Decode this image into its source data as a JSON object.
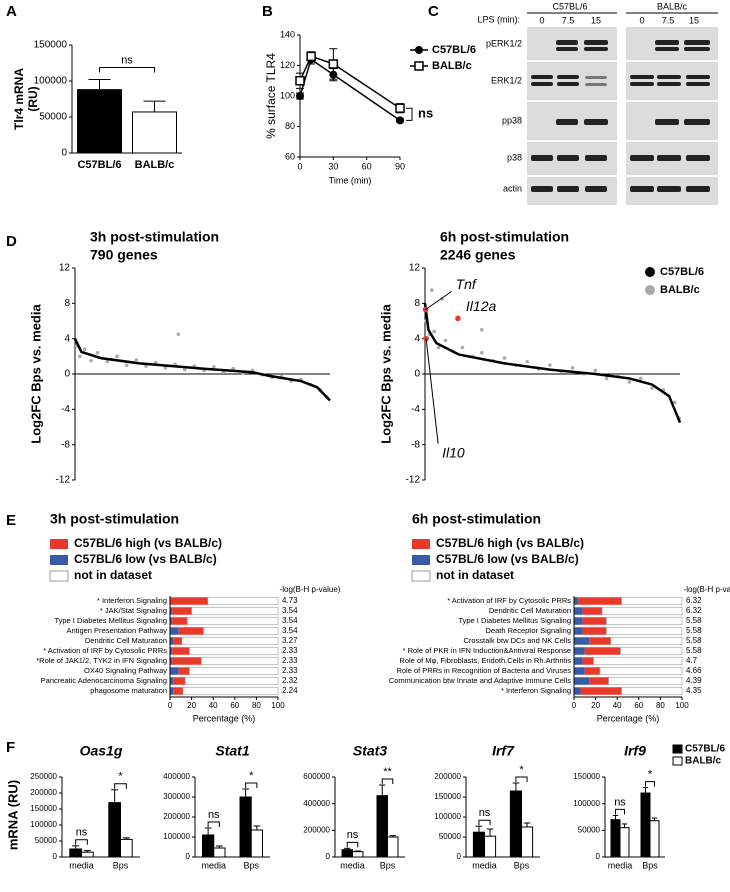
{
  "panel_labels": [
    "A",
    "B",
    "C",
    "D",
    "E",
    "F"
  ],
  "blot": {
    "lps_label": "LPS (min):",
    "strains": [
      "C57BL/6",
      "BALB/c"
    ],
    "times": [
      "0",
      "7.5",
      "15",
      "0",
      "7.5",
      "15"
    ],
    "bands": [
      "pERK1/2",
      "ERK1/2",
      "pp38",
      "p38",
      "actin"
    ]
  },
  "chart_data": [
    {
      "type": "bar",
      "ylabel": [
        "Tlr4 mRNA",
        "(RU)"
      ],
      "categories": [
        "C57BL/6",
        "BALB/c"
      ],
      "values": [
        88000,
        57000
      ],
      "errors": [
        14000,
        15000
      ],
      "colors": [
        "#000000",
        "#ffffff"
      ],
      "ylim": [
        0,
        150000
      ],
      "yticks": [
        0,
        50000,
        100000,
        150000
      ],
      "annotation": "ns"
    },
    {
      "type": "line",
      "ylabel": "% surface TLR4",
      "xlabel": "Time (min)",
      "x": [
        0,
        10,
        30,
        90
      ],
      "xlim": [
        0,
        90
      ],
      "xticks": [
        0,
        30,
        60,
        90
      ],
      "ylim": [
        60,
        140
      ],
      "yticks": [
        60,
        80,
        100,
        120,
        140
      ],
      "annotation": "ns",
      "series": [
        {
          "name": "C57BL/6",
          "color": "#000000",
          "marker": "circle",
          "values": [
            100,
            124,
            114,
            84
          ],
          "errors": [
            2,
            3,
            4,
            1
          ]
        },
        {
          "name": "BALB/c",
          "color": "#000000",
          "marker": "square",
          "values": [
            110,
            126,
            121,
            92
          ],
          "errors": [
            5,
            3,
            10,
            3
          ]
        }
      ]
    },
    {
      "type": "scatter",
      "title": "3h post-stimulation",
      "subtitle": "790 genes",
      "ylabel": "Log2FC Bps vs. media",
      "xlim": [
        0,
        790
      ],
      "ylim": [
        -12,
        12
      ],
      "yticks": [
        12,
        8,
        4,
        0,
        -4,
        -8,
        -12
      ],
      "series": [
        {
          "mode": "points",
          "color": "#aaaaaa",
          "x": [
            5,
            15,
            30,
            50,
            70,
            100,
            130,
            160,
            190,
            220,
            250,
            280,
            310,
            340,
            370,
            400,
            430,
            460,
            490,
            520,
            550,
            580,
            610,
            640,
            670,
            700,
            730,
            760,
            780,
            320
          ],
          "values": [
            3.2,
            2.0,
            2.8,
            1.5,
            2.4,
            1.4,
            2.0,
            1.0,
            1.6,
            0.9,
            1.3,
            0.7,
            1.1,
            0.5,
            0.9,
            0.4,
            0.8,
            0.2,
            0.6,
            0.1,
            0.4,
            -0.1,
            -0.4,
            -0.3,
            -0.8,
            -0.6,
            -1.2,
            -1.8,
            -2.6,
            4.5
          ]
        },
        {
          "mode": "line",
          "color": "#000000",
          "x": [
            0,
            20,
            80,
            200,
            400,
            550,
            600,
            700,
            750,
            790
          ],
          "values": [
            4,
            2.5,
            1.8,
            1.2,
            0.6,
            0.2,
            -0.2,
            -0.8,
            -1.5,
            -3
          ]
        }
      ]
    },
    {
      "type": "scatter",
      "title": "6h post-stimulation",
      "subtitle": "2246 genes",
      "ylabel": "Log2FC Bps vs. media",
      "xlim": [
        0,
        2246
      ],
      "ylim": [
        -12,
        12
      ],
      "yticks": [
        12,
        8,
        4,
        0,
        -4,
        -8,
        -12
      ],
      "legend": "upper right",
      "series": [
        {
          "name": "BALB/c",
          "mode": "points",
          "color": "#aaaaaa",
          "x": [
            10,
            40,
            80,
            120,
            180,
            250,
            330,
            420,
            500,
            600,
            700,
            800,
            900,
            1000,
            1100,
            1200,
            1300,
            1400,
            1500,
            1600,
            1700,
            1800,
            1900,
            2000,
            2100,
            2200,
            2240,
            150,
            60,
            500
          ],
          "values": [
            6,
            4.5,
            4.8,
            3,
            3.8,
            2.5,
            3,
            2,
            2.4,
            1.5,
            1.8,
            1.0,
            1.4,
            0.6,
            1,
            0.3,
            0.7,
            0,
            0.4,
            -0.5,
            -0.2,
            -0.9,
            -0.5,
            -1.6,
            -1.8,
            -3.2,
            -5,
            8.5,
            9.5,
            5
          ]
        },
        {
          "name": "C57BL/6",
          "mode": "line",
          "color": "#000000",
          "x": [
            0,
            30,
            100,
            300,
            700,
            1100,
            1500,
            1800,
            2000,
            2150,
            2246
          ],
          "values": [
            8,
            5,
            3.5,
            2.2,
            1.2,
            0.5,
            0,
            -0.5,
            -1.2,
            -2.5,
            -5.5
          ]
        }
      ],
      "highlight_color": "#e8392b",
      "highlights": [
        {
          "label": "Tnf",
          "x": 5,
          "y": 7.3
        },
        {
          "label": "Il12a",
          "x": 290,
          "y": 6.3
        },
        {
          "label": "Il10",
          "x": 10,
          "y": 4
        }
      ]
    },
    {
      "type": "stacked_hbar",
      "title": "3h post-stimulation",
      "score_label": "-log(B-H p-value)",
      "xlabel": "Percentage (%)",
      "xlim": [
        0,
        100
      ],
      "xticks": [
        0,
        20,
        40,
        60,
        80,
        100
      ],
      "categories": [
        "* Interferon Signaling",
        "* JAK/Stat Signaling",
        "Type I Diabetes Mellitus Signaling",
        "Antigen Presentation Pathway",
        "Dendritic Cell Maturation",
        "* Activation of IRF by Cytosolic PRRs",
        "*Role of JAK1/2, TYK2 in IFN Signaling",
        "OX40 Signaling Pathway",
        "Pancreatic Adenocarcinoma Signaling",
        "phagosome maturation"
      ],
      "scores": [
        4.73,
        3.54,
        3.54,
        3.54,
        3.27,
        2.33,
        2.33,
        2.33,
        2.32,
        2.24
      ],
      "series": [
        {
          "name": "C57BL/6 low (vs BALB/c)",
          "color": "#3a5ba8",
          "values": [
            0,
            2,
            2,
            8,
            3,
            2,
            2,
            8,
            3,
            3
          ]
        },
        {
          "name": "C57BL/6 high (vs BALB/c)",
          "color": "#e8392b",
          "values": [
            35,
            18,
            14,
            23,
            8,
            16,
            27,
            10,
            11,
            9
          ]
        },
        {
          "name": "not in dataset",
          "color": "#ffffff",
          "values": [
            65,
            80,
            84,
            69,
            89,
            82,
            71,
            82,
            86,
            88
          ]
        }
      ]
    },
    {
      "type": "stacked_hbar",
      "title": "6h post-stimulation",
      "score_label": "-log(B-H p-value)",
      "xlabel": "Percentage (%)",
      "xlim": [
        0,
        100
      ],
      "xticks": [
        0,
        20,
        40,
        60,
        80,
        100
      ],
      "categories": [
        "* Activation of IRF by Cytosolic PRRs",
        "Dendritic Cell Maturation",
        "Type I Diabetes Mellitus Signaling",
        "Death Receptor Signaling",
        "Crosstalk btw DCs and NK Cells",
        "* Role of PKR in IFN Induction&Antiviral Response",
        "Role of Mφ, Fibroblasts, Endoth.Cells in Rh.Arthritis",
        "Role of PRRs in Recognition of Bacteria and Viruses",
        "Communication btw Innate and Adaptive Immune Cells",
        "* Interferon Signaling"
      ],
      "scores": [
        6.32,
        6.32,
        5.58,
        5.58,
        5.58,
        5.58,
        4.7,
        4.66,
        4.39,
        4.35
      ],
      "series": [
        {
          "name": "C57BL/6 low (vs BALB/c)",
          "color": "#3a5ba8",
          "values": [
            4,
            8,
            8,
            8,
            14,
            10,
            8,
            10,
            14,
            6
          ]
        },
        {
          "name": "C57BL/6 high (vs BALB/c)",
          "color": "#e8392b",
          "values": [
            40,
            18,
            22,
            22,
            20,
            33,
            10,
            14,
            18,
            38
          ]
        },
        {
          "name": "not in dataset",
          "color": "#ffffff",
          "values": [
            56,
            74,
            70,
            70,
            66,
            57,
            82,
            76,
            68,
            56
          ]
        }
      ]
    },
    {
      "type": "grouped_bar",
      "title": "Oas1g",
      "ylabel": "mRNA (RU)",
      "categories": [
        "media",
        "Bps"
      ],
      "ylim": [
        0,
        250000
      ],
      "yticks": [
        0,
        50000,
        100000,
        150000,
        200000,
        250000
      ],
      "annotations": [
        "ns",
        "*"
      ],
      "series": [
        {
          "color": "#000000",
          "values": [
            25000,
            170000
          ],
          "errors": [
            10000,
            40000
          ]
        },
        {
          "color": "#ffffff",
          "values": [
            15000,
            55000
          ],
          "errors": [
            5000,
            5000
          ]
        }
      ]
    },
    {
      "type": "grouped_bar",
      "title": "Stat1",
      "categories": [
        "media",
        "Bps"
      ],
      "ylim": [
        0,
        400000
      ],
      "yticks": [
        0,
        100000,
        200000,
        300000,
        400000
      ],
      "annotations": [
        "ns",
        "*"
      ],
      "series": [
        {
          "color": "#000000",
          "values": [
            110000,
            300000
          ],
          "errors": [
            35000,
            40000
          ]
        },
        {
          "color": "#ffffff",
          "values": [
            45000,
            135000
          ],
          "errors": [
            10000,
            20000
          ]
        }
      ]
    },
    {
      "type": "grouped_bar",
      "title": "Stat3",
      "categories": [
        "media",
        "Bps"
      ],
      "ylim": [
        0,
        600000
      ],
      "yticks": [
        0,
        200000,
        400000,
        600000
      ],
      "annotations": [
        "ns",
        "**"
      ],
      "series": [
        {
          "color": "#000000",
          "values": [
            55000,
            460000
          ],
          "errors": [
            10000,
            80000
          ]
        },
        {
          "color": "#ffffff",
          "values": [
            40000,
            150000
          ],
          "errors": [
            5000,
            10000
          ]
        }
      ]
    },
    {
      "type": "grouped_bar",
      "title": "Irf7",
      "categories": [
        "media",
        "Bps"
      ],
      "ylim": [
        0,
        200000
      ],
      "yticks": [
        0,
        50000,
        100000,
        150000,
        200000
      ],
      "annotations": [
        "ns",
        "*"
      ],
      "series": [
        {
          "color": "#000000",
          "values": [
            62000,
            165000
          ],
          "errors": [
            15000,
            20000
          ]
        },
        {
          "color": "#ffffff",
          "values": [
            52000,
            75000
          ],
          "errors": [
            18000,
            10000
          ]
        }
      ]
    },
    {
      "type": "grouped_bar",
      "title": "Irf9",
      "categories": [
        "media",
        "Bps"
      ],
      "ylim": [
        0,
        150000
      ],
      "yticks": [
        0,
        50000,
        100000,
        150000
      ],
      "annotations": [
        "ns",
        "*"
      ],
      "legend": "upper right",
      "series": [
        {
          "name": "C57BL/6",
          "color": "#000000",
          "values": [
            70000,
            120000
          ],
          "errors": [
            8000,
            10000
          ]
        },
        {
          "name": "BALB/c",
          "color": "#ffffff",
          "values": [
            55000,
            68000
          ],
          "errors": [
            7000,
            5000
          ]
        }
      ]
    }
  ]
}
